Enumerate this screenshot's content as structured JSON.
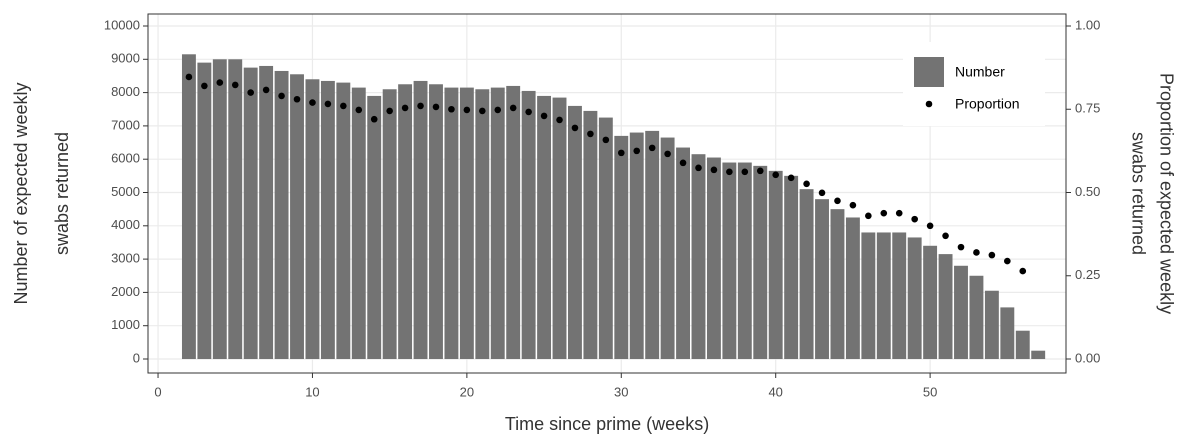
{
  "chart_data": {
    "type": "bar",
    "xlabel": "Time since prime (weeks)",
    "ylabel": [
      "Number of expected weekly",
      "swabs returned"
    ],
    "y2label": [
      "Proportion of expected weekly",
      "swabs returned"
    ],
    "x": [
      2,
      3,
      4,
      5,
      6,
      7,
      8,
      9,
      10,
      11,
      12,
      13,
      14,
      15,
      16,
      17,
      18,
      19,
      20,
      21,
      22,
      23,
      24,
      25,
      26,
      27,
      28,
      29,
      30,
      31,
      32,
      33,
      34,
      35,
      36,
      37,
      38,
      39,
      40,
      41,
      42,
      43,
      44,
      45,
      46,
      47,
      48,
      49,
      50,
      51,
      52,
      53,
      54,
      55,
      56,
      57
    ],
    "series": [
      {
        "name": "Number",
        "color": "#737373",
        "values": [
          9150,
          8900,
          9000,
          9000,
          8750,
          8800,
          8650,
          8550,
          8400,
          8350,
          8300,
          8150,
          7900,
          8100,
          8250,
          8350,
          8250,
          8150,
          8150,
          8100,
          8150,
          8200,
          8050,
          7900,
          7850,
          7600,
          7450,
          7250,
          6700,
          6800,
          6850,
          6650,
          6350,
          6150,
          6050,
          5900,
          5900,
          5800,
          5650,
          5500,
          5100,
          4800,
          4500,
          4250,
          3800,
          3800,
          3800,
          3650,
          3400,
          3150,
          2800,
          2500,
          2050,
          1550,
          850,
          250
        ]
      },
      {
        "name": "Proportion",
        "color": "#000000",
        "axis": "y2",
        "values": [
          0.847,
          0.82,
          0.83,
          0.823,
          0.8,
          0.808,
          0.79,
          0.78,
          0.77,
          0.766,
          0.76,
          0.748,
          0.72,
          0.745,
          0.754,
          0.76,
          0.757,
          0.75,
          0.748,
          0.745,
          0.748,
          0.754,
          0.742,
          0.73,
          0.718,
          0.694,
          0.676,
          0.658,
          0.619,
          0.625,
          0.634,
          0.616,
          0.589,
          0.574,
          0.568,
          0.562,
          0.562,
          0.565,
          0.553,
          0.544,
          0.526,
          0.499,
          0.475,
          0.462,
          0.43,
          0.438,
          0.438,
          0.42,
          0.4,
          0.37,
          0.336,
          0.32,
          0.312,
          0.294,
          0.264,
          null
        ]
      }
    ],
    "xlim": [
      -0.65,
      58.8
    ],
    "xticks": [
      0,
      10,
      20,
      30,
      40,
      50
    ],
    "ylim": [
      -420,
      10360
    ],
    "yticks": [
      0,
      1000,
      2000,
      3000,
      4000,
      5000,
      6000,
      7000,
      8000,
      9000,
      10000
    ],
    "y2lim": [
      -0.042,
      1.036
    ],
    "y2ticks": [
      {
        "value": 0,
        "label": "0.00"
      },
      {
        "value": 0.25,
        "label": "0.25"
      },
      {
        "value": 0.5,
        "label": "0.50"
      },
      {
        "value": 0.75,
        "label": "0.75"
      },
      {
        "value": 1,
        "label": "1.00"
      }
    ],
    "grid": true,
    "legend": "top-right"
  }
}
